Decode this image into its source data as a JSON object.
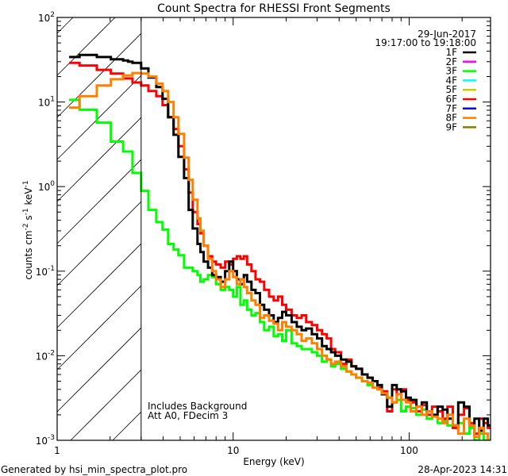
{
  "chart_data": {
    "type": "line",
    "title": "Count Spectra for RHESSI Front Segments",
    "xlabel": "Energy (keV)",
    "ylabel_parts": [
      "counts cm",
      "-2",
      " s",
      "-1",
      " keV",
      "-1"
    ],
    "xscale": "log",
    "yscale": "log",
    "xlim": [
      1,
      290
    ],
    "ylim": [
      0.001,
      100
    ],
    "x_tick_labels": [
      {
        "value": 1,
        "label": "1"
      },
      {
        "value": 10,
        "label": "10"
      },
      {
        "value": 100,
        "label": "100"
      }
    ],
    "y_tick_labels": [
      {
        "value": 100,
        "base": "10",
        "exp": "2"
      },
      {
        "value": 10,
        "base": "10",
        "exp": "1"
      },
      {
        "value": 1,
        "base": "10",
        "exp": "0"
      },
      {
        "value": 0.1,
        "base": "10",
        "exp": "-1"
      },
      {
        "value": 0.01,
        "base": "10",
        "exp": "-2"
      },
      {
        "value": 0.001,
        "base": "10",
        "exp": "-3"
      }
    ],
    "hatched_region_max_energy": 3,
    "date": "29-Jun-2017",
    "time_range": "19:17:00 to 19:18:00",
    "annotations": [
      "Includes Background",
      "Att A0, FDecim 3"
    ],
    "legend_placement": "top-right",
    "legend": [
      {
        "name": "1F",
        "color": "#000000"
      },
      {
        "name": "2F",
        "color": "#ff00ff"
      },
      {
        "name": "3F",
        "color": "#00ff00"
      },
      {
        "name": "4F",
        "color": "#00ffff"
      },
      {
        "name": "5F",
        "color": "#cccc00"
      },
      {
        "name": "6F",
        "color": "#ff0000"
      },
      {
        "name": "7F",
        "color": "#0000ff"
      },
      {
        "name": "8F",
        "color": "#ff8000"
      },
      {
        "name": "9F",
        "color": "#808000"
      }
    ],
    "energy_edges": [
      1.17,
      1.34,
      1.5,
      1.68,
      1.85,
      2.02,
      2.2,
      2.37,
      2.53,
      2.68,
      2.84,
      3.0,
      3.3,
      3.66,
      3.97,
      4.27,
      4.59,
      4.89,
      5.26,
      5.59,
      5.89,
      6.27,
      6.52,
      6.8,
      7.2,
      7.6,
      8.0,
      8.5,
      9.0,
      9.5,
      10,
      10.5,
      11,
      11.5,
      12,
      12.7,
      13.4,
      14.2,
      15,
      16,
      17,
      18,
      19,
      20,
      21.5,
      23,
      24.5,
      26,
      28,
      30,
      32,
      34,
      36,
      38,
      41,
      44,
      47,
      50,
      54,
      58,
      62,
      66,
      70,
      75,
      80,
      85,
      90,
      96,
      102,
      110,
      118,
      126,
      135,
      145,
      155,
      165,
      177,
      190,
      205,
      220,
      235,
      250,
      265,
      280,
      290
    ],
    "series": [
      {
        "name": "3F",
        "color": "#00ff00",
        "values": [
          10.6,
          8.1,
          8.1,
          5.7,
          5.7,
          3.4,
          3.4,
          2.6,
          2.6,
          1.45,
          1.45,
          0.89,
          0.53,
          0.38,
          0.31,
          0.21,
          0.18,
          0.154,
          0.11,
          0.11,
          0.1,
          0.09,
          0.075,
          0.08,
          0.09,
          0.085,
          0.07,
          0.06,
          0.065,
          0.06,
          0.05,
          0.065,
          0.04,
          0.045,
          0.035,
          0.03,
          0.032,
          0.025,
          0.02,
          0.022,
          0.017,
          0.018,
          0.015,
          0.02,
          0.014,
          0.013,
          0.012,
          0.012,
          0.011,
          0.01,
          0.0085,
          0.009,
          0.0075,
          0.008,
          0.007,
          0.0065,
          0.006,
          0.0055,
          0.005,
          0.0045,
          0.005,
          0.004,
          0.0035,
          0.0032,
          0.0028,
          0.003,
          0.0022,
          0.0025,
          0.0024,
          0.002,
          0.0023,
          0.0018,
          0.002,
          0.0016,
          0.0017,
          0.0015,
          0.0014,
          0.0016,
          0.0012,
          0.0014,
          0.001,
          0.0012,
          0.001,
          0.0009
        ]
      },
      {
        "name": "6F",
        "color": "#ff0000",
        "values": [
          29,
          27,
          27,
          24,
          24,
          21.7,
          21.7,
          19,
          19,
          17,
          17,
          15.7,
          13.5,
          11.7,
          9.2,
          6.6,
          4.8,
          3.0,
          1.6,
          0.85,
          0.5,
          0.36,
          0.28,
          0.2,
          0.15,
          0.13,
          0.12,
          0.11,
          0.13,
          0.12,
          0.14,
          0.15,
          0.14,
          0.15,
          0.12,
          0.1,
          0.08,
          0.075,
          0.06,
          0.05,
          0.045,
          0.05,
          0.04,
          0.035,
          0.03,
          0.028,
          0.03,
          0.025,
          0.023,
          0.02,
          0.018,
          0.016,
          0.012,
          0.011,
          0.008,
          0.009,
          0.0075,
          0.007,
          0.006,
          0.0055,
          0.005,
          0.0042,
          0.0038,
          0.0022,
          0.004,
          0.0035,
          0.004,
          0.003,
          0.0028,
          0.0022,
          0.0026,
          0.002,
          0.0025,
          0.0022,
          0.0018,
          0.0025,
          0.0014,
          0.002,
          0.0024,
          0.0016,
          0.0012,
          0.0018,
          0.0016,
          0.0014
        ]
      },
      {
        "name": "1F",
        "color": "#000000",
        "values": [
          34,
          36,
          36,
          34,
          34,
          32,
          32,
          31,
          30,
          29,
          29,
          25,
          19.5,
          15,
          10.9,
          6.6,
          4.1,
          2.25,
          1.26,
          0.53,
          0.32,
          0.21,
          0.168,
          0.13,
          0.11,
          0.09,
          0.085,
          0.075,
          0.1,
          0.13,
          0.1,
          0.08,
          0.07,
          0.09,
          0.075,
          0.06,
          0.055,
          0.04,
          0.035,
          0.03,
          0.025,
          0.028,
          0.033,
          0.03,
          0.025,
          0.022,
          0.02,
          0.021,
          0.018,
          0.016,
          0.013,
          0.012,
          0.011,
          0.01,
          0.009,
          0.0085,
          0.0075,
          0.007,
          0.006,
          0.0055,
          0.005,
          0.0045,
          0.0035,
          0.0025,
          0.0045,
          0.004,
          0.0038,
          0.0032,
          0.003,
          0.0025,
          0.0028,
          0.0022,
          0.002,
          0.0025,
          0.0023,
          0.0018,
          0.0015,
          0.0028,
          0.0025,
          0.0015,
          0.0018,
          0.0013,
          0.0018,
          0.0015
        ]
      },
      {
        "name": "8F",
        "color": "#ff8000",
        "values": [
          8.6,
          11.7,
          11.7,
          15.7,
          15.7,
          18.6,
          18.6,
          20.6,
          20.6,
          22,
          22,
          21.7,
          20,
          16.5,
          13.5,
          10,
          6.6,
          4.2,
          2.2,
          1.2,
          0.7,
          0.42,
          0.3,
          0.2,
          0.14,
          0.1,
          0.08,
          0.065,
          0.08,
          0.1,
          0.085,
          0.07,
          0.08,
          0.065,
          0.055,
          0.045,
          0.04,
          0.028,
          0.03,
          0.026,
          0.024,
          0.02,
          0.025,
          0.022,
          0.02,
          0.018,
          0.015,
          0.016,
          0.014,
          0.012,
          0.01,
          0.009,
          0.008,
          0.0085,
          0.0075,
          0.0065,
          0.006,
          0.0055,
          0.005,
          0.0048,
          0.0042,
          0.004,
          0.0036,
          0.0032,
          0.0028,
          0.0035,
          0.003,
          0.0028,
          0.0022,
          0.0025,
          0.002,
          0.0022,
          0.0019,
          0.0018,
          0.0016,
          0.002,
          0.0015,
          0.0012,
          0.0018,
          0.0015,
          0.0011,
          0.0014,
          0.0012,
          0.001
        ]
      }
    ]
  },
  "footer": {
    "generated_by": "Generated by hsi_min_spectra_plot.pro",
    "timestamp": "28-Apr-2023 14:31"
  }
}
